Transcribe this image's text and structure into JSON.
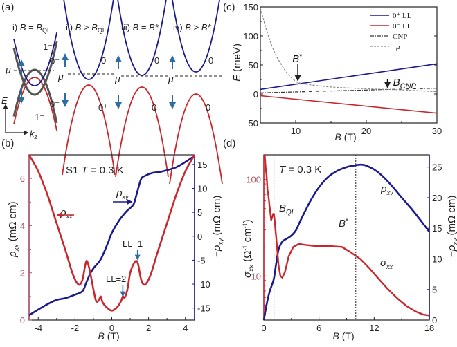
{
  "colors": {
    "red": "#c8282d",
    "navy": "#1a1a8c",
    "gray": "#555555",
    "dark": "#222222",
    "steel": "#2e6da4",
    "pink_axis": "#b0566a"
  },
  "panel_labels": {
    "a": "(a)",
    "b": "(b)",
    "c": "(c)",
    "d": "(d)"
  },
  "panel_a": {
    "subtitles": [
      {
        "roman": "i)",
        "lhs": "B",
        "op": "=",
        "rhs": "B",
        "sub": "QL"
      },
      {
        "roman": "ii)",
        "lhs": "B",
        "op": ">",
        "rhs": "B",
        "sub": "QL"
      },
      {
        "roman": "iii)",
        "lhs": "B",
        "op": "=",
        "rhs": "B*",
        "sub": ""
      },
      {
        "roman": "iv)",
        "lhs": "B",
        "op": ">",
        "rhs": "B*",
        "sub": ""
      }
    ],
    "band_labels": {
      "one_minus": "1⁻",
      "zero_minus": "0⁻",
      "zero_plus": "0⁺",
      "one_plus": "1⁺",
      "mu": "μ"
    },
    "axis": {
      "y": "E",
      "x": "k",
      "x_sub": "z"
    }
  },
  "chart_data": [
    {
      "id": "c",
      "type": "line",
      "title": "",
      "xlabel": "B (T)",
      "ylabel": "E (meV)",
      "xlim": [
        5,
        30
      ],
      "ylim": [
        -50,
        150
      ],
      "xticks": [
        10,
        20,
        30
      ],
      "yticks": [
        -50,
        0,
        50,
        100,
        150
      ],
      "legend": {
        "placement": "top-right",
        "entries": [
          "0⁺ LL",
          "0⁻ LL",
          "CNP",
          "μ"
        ]
      },
      "series": [
        {
          "name": "0⁺ LL",
          "color": "#1a1a8c",
          "style": "solid",
          "x": [
            5,
            30
          ],
          "y": [
            8,
            52
          ]
        },
        {
          "name": "0⁻ LL",
          "color": "#c8282d",
          "style": "solid",
          "x": [
            5,
            30
          ],
          "y": [
            -3,
            -33
          ]
        },
        {
          "name": "CNP",
          "color": "#333333",
          "style": "dashdot",
          "x": [
            5,
            30
          ],
          "y": [
            2,
            10
          ]
        },
        {
          "name": "μ",
          "color": "#888888",
          "style": "dashed",
          "x": [
            5,
            6,
            7,
            8,
            9,
            10,
            10.5,
            12,
            15,
            20,
            25,
            30
          ],
          "y": [
            148,
            105,
            72,
            50,
            33,
            22,
            19,
            16,
            12,
            9,
            7,
            4
          ]
        }
      ],
      "annotations": [
        {
          "text": "B*",
          "x": 10.5,
          "y": 22,
          "arrow": true
        },
        {
          "text": "B",
          "sub": "CNP",
          "x": 23,
          "y": 8,
          "arrow": true
        }
      ]
    },
    {
      "id": "b",
      "type": "line",
      "title": "S1   T = 0.3 K",
      "xlabel": "B (T)",
      "ylabel": "ρxx (mΩ cm)",
      "y2label": "−ρxy (mΩ cm)",
      "xlim": [
        -4.5,
        4.5
      ],
      "ylim": [
        0,
        7
      ],
      "y2lim": [
        -17.5,
        17
      ],
      "xticks": [
        -4,
        -2,
        0,
        2,
        4
      ],
      "yticks": [
        0,
        2,
        4,
        6
      ],
      "y2ticks": [
        -15,
        -10,
        -5,
        0,
        5,
        10,
        15
      ],
      "series": [
        {
          "name": "ρxx",
          "axis": "left",
          "color": "#c8282d",
          "x": [
            -4.5,
            -4,
            -3.5,
            -3,
            -2.5,
            -2.1,
            -1.8,
            -1.6,
            -1.45,
            -1.35,
            -1.2,
            -1.0,
            -0.85,
            -0.7,
            -0.6,
            -0.5,
            -0.3,
            0,
            0.3,
            0.5,
            0.6,
            0.7,
            0.85,
            1.0,
            1.2,
            1.35,
            1.45,
            1.6,
            1.8,
            2.1,
            2.5,
            3,
            3.5,
            4,
            4.5
          ],
          "y": [
            7,
            6.3,
            5.3,
            4.1,
            2.9,
            1.9,
            1.5,
            1.7,
            2.3,
            2.5,
            2.1,
            1.3,
            0.8,
            0.85,
            1.0,
            0.75,
            0.55,
            0.4,
            0.55,
            0.8,
            1.0,
            0.95,
            1.3,
            2.0,
            2.4,
            2.5,
            2.3,
            1.7,
            1.5,
            1.9,
            2.9,
            4.1,
            5.3,
            6.3,
            7
          ]
        },
        {
          "name": "ρxy",
          "axis": "right",
          "color": "#1a1a8c",
          "x": [
            -4.5,
            -4,
            -3.5,
            -3,
            -2.5,
            -2,
            -1.6,
            -1.4,
            -1.2,
            -1.0,
            -0.6,
            -0.2,
            0,
            0.4,
            0.8,
            1.0,
            1.2,
            1.4,
            1.6,
            1.8,
            2.2,
            2.6,
            3.0,
            3.5,
            4.0,
            4.5
          ],
          "y": [
            -16.5,
            -15.3,
            -14.2,
            -13.3,
            -12.9,
            -12.2,
            -11.5,
            -9.8,
            -8,
            -6.7,
            -4.8,
            -1.3,
            0.7,
            3.3,
            5.2,
            5.9,
            6.8,
            9.5,
            12.0,
            12.6,
            13.2,
            13.4,
            13.8,
            14.4,
            15.5,
            16.8
          ]
        }
      ],
      "annotations": [
        {
          "text": "ρxx",
          "arrow": "left",
          "x": -3.0,
          "y": 4.4
        },
        {
          "text": "ρxy",
          "arrow": "right",
          "x": 0.6,
          "y": 5.0
        },
        {
          "text": "LL=1",
          "x": 1.4,
          "y": 3.4,
          "arrow": "down"
        },
        {
          "text": "LL=2",
          "x": 0.6,
          "y": 1.7,
          "arrow": "down"
        }
      ]
    },
    {
      "id": "d",
      "type": "line",
      "title": "T = 0.3 K",
      "xlabel": "B (T)",
      "ylabel": "σxx (Ω⁻¹ cm⁻¹)",
      "y2label": "−ρxy (mΩ cm)",
      "xlim": [
        0,
        18
      ],
      "ylim_log": [
        3.5,
        180
      ],
      "y2lim": [
        0,
        27
      ],
      "xticks": [
        0,
        6,
        12,
        18
      ],
      "yticks": [
        10,
        100
      ],
      "y2ticks": [
        0,
        5,
        10,
        15,
        20,
        25
      ],
      "vlines": [
        {
          "x": 1.1,
          "label": "B",
          "sub": "QL"
        },
        {
          "x": 10,
          "label": "B*"
        }
      ],
      "series": [
        {
          "name": "σxx",
          "axis": "left",
          "color": "#c8282d",
          "x": [
            0.1,
            0.2,
            0.3,
            0.4,
            0.5,
            0.6,
            0.7,
            0.8,
            0.9,
            1.0,
            1.1,
            1.2,
            1.4,
            1.6,
            1.8,
            2.0,
            2.3,
            2.7,
            3.2,
            3.8,
            4.5,
            5.5,
            7,
            8.5,
            9.5,
            10.5,
            11.5,
            12.5,
            13.5,
            14.5,
            15.5,
            16.5,
            17.3,
            18
          ],
          "y": [
            180,
            130,
            110,
            78,
            68,
            55,
            46,
            38,
            40,
            44,
            44,
            36,
            22,
            13,
            10,
            9.6,
            11,
            16,
            20,
            21.5,
            21,
            20.5,
            20.5,
            20,
            17.5,
            15,
            12,
            9.3,
            7.3,
            5.9,
            4.9,
            4.3,
            4.0,
            3.9
          ]
        },
        {
          "name": "ρxy",
          "axis": "right",
          "color": "#1a1a8c",
          "x": [
            0,
            0.3,
            0.6,
            0.9,
            1.1,
            1.3,
            1.6,
            2.0,
            2.5,
            3.0,
            3.5,
            4.0,
            5.0,
            6.0,
            7.0,
            8.0,
            9.0,
            10.0,
            10.5,
            11.0,
            12.0,
            13.0,
            14.0,
            15.0,
            16.0,
            17.0,
            18.0
          ],
          "y": [
            0,
            2.5,
            4.5,
            5.8,
            6.8,
            8.8,
            11.5,
            12.8,
            13.3,
            13.8,
            14.7,
            16.3,
            19.3,
            21.7,
            23.4,
            24.4,
            25.0,
            25.3,
            25.4,
            25.3,
            24.6,
            23.4,
            21.8,
            20.0,
            18.3,
            16.4,
            14.4
          ]
        }
      ],
      "annotations": [
        {
          "text": "ρxy",
          "x": 15.0,
          "y2": 22.5
        },
        {
          "text": "σxx",
          "x": 14.5,
          "y": 9.5
        }
      ]
    }
  ]
}
